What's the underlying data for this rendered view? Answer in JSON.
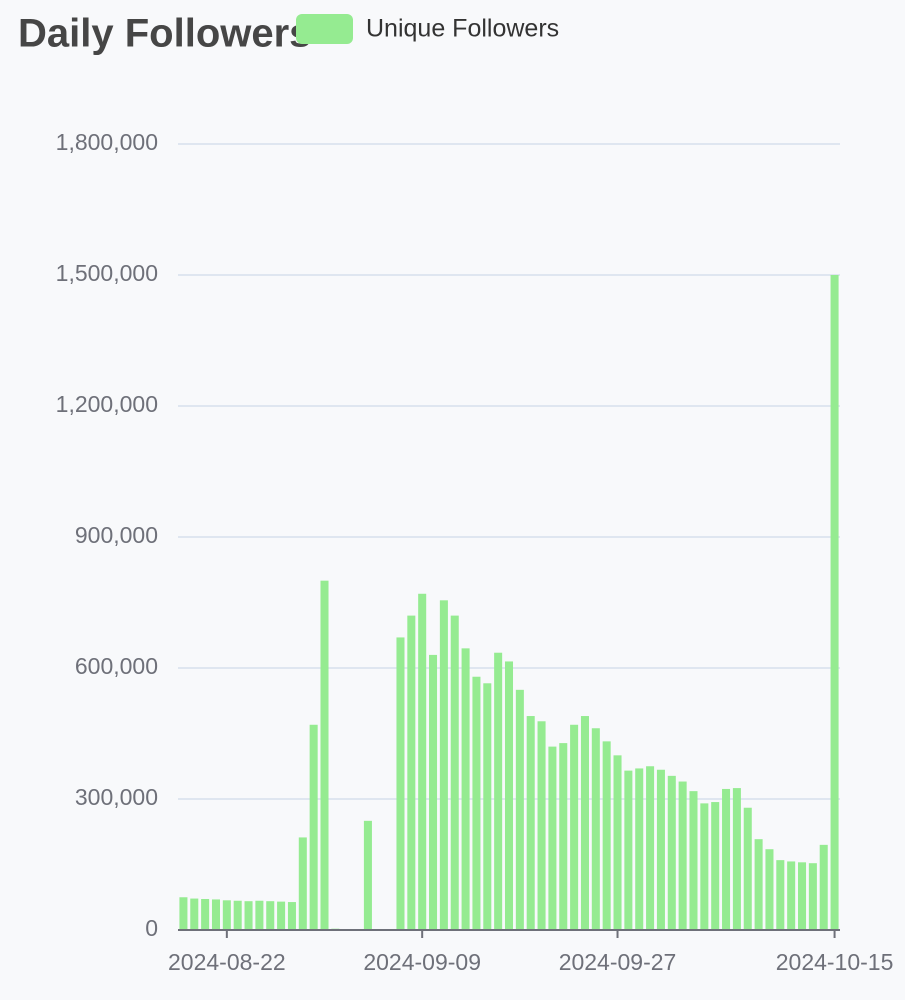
{
  "chart_data": {
    "type": "bar",
    "title": "Daily Followers",
    "series": [
      {
        "name": "Unique Followers",
        "color": "#95eb91",
        "values": [
          75000,
          72000,
          71000,
          70000,
          68000,
          67000,
          66000,
          67000,
          66000,
          65000,
          64000,
          212000,
          470000,
          800000,
          3000,
          0,
          0,
          250000,
          0,
          0,
          670000,
          720000,
          770000,
          630000,
          755000,
          720000,
          645000,
          580000,
          565000,
          635000,
          615000,
          550000,
          490000,
          478000,
          420000,
          428000,
          470000,
          490000,
          462000,
          432000,
          400000,
          365000,
          370000,
          375000,
          367000,
          353000,
          340000,
          318000,
          290000,
          293000,
          323000,
          325000,
          280000,
          208000,
          185000,
          160000,
          157000,
          155000,
          153000,
          195000,
          1500000
        ]
      }
    ],
    "categories": [
      null,
      null,
      null,
      null,
      "2024-08-22",
      null,
      null,
      null,
      null,
      null,
      null,
      null,
      null,
      null,
      null,
      null,
      null,
      null,
      null,
      null,
      null,
      null,
      "2024-09-09",
      null,
      null,
      null,
      null,
      null,
      null,
      null,
      null,
      null,
      null,
      null,
      null,
      null,
      null,
      null,
      null,
      null,
      "2024-09-27",
      null,
      null,
      null,
      null,
      null,
      null,
      null,
      null,
      null,
      null,
      null,
      null,
      null,
      null,
      null,
      null,
      null,
      null,
      null,
      "2024-10-15"
    ],
    "ylim": [
      0,
      1800000
    ],
    "yticks": [
      0,
      {
        "value": 300000,
        "label": "300,000"
      },
      {
        "value": 600000,
        "label": "600,000"
      },
      {
        "value": 900000,
        "label": "900,000"
      },
      {
        "value": 1200000,
        "label": "1,200,000"
      },
      {
        "value": 1500000,
        "label": "1,500,000"
      },
      {
        "value": 1800000,
        "label": "1,800,000"
      }
    ],
    "grid": true
  }
}
